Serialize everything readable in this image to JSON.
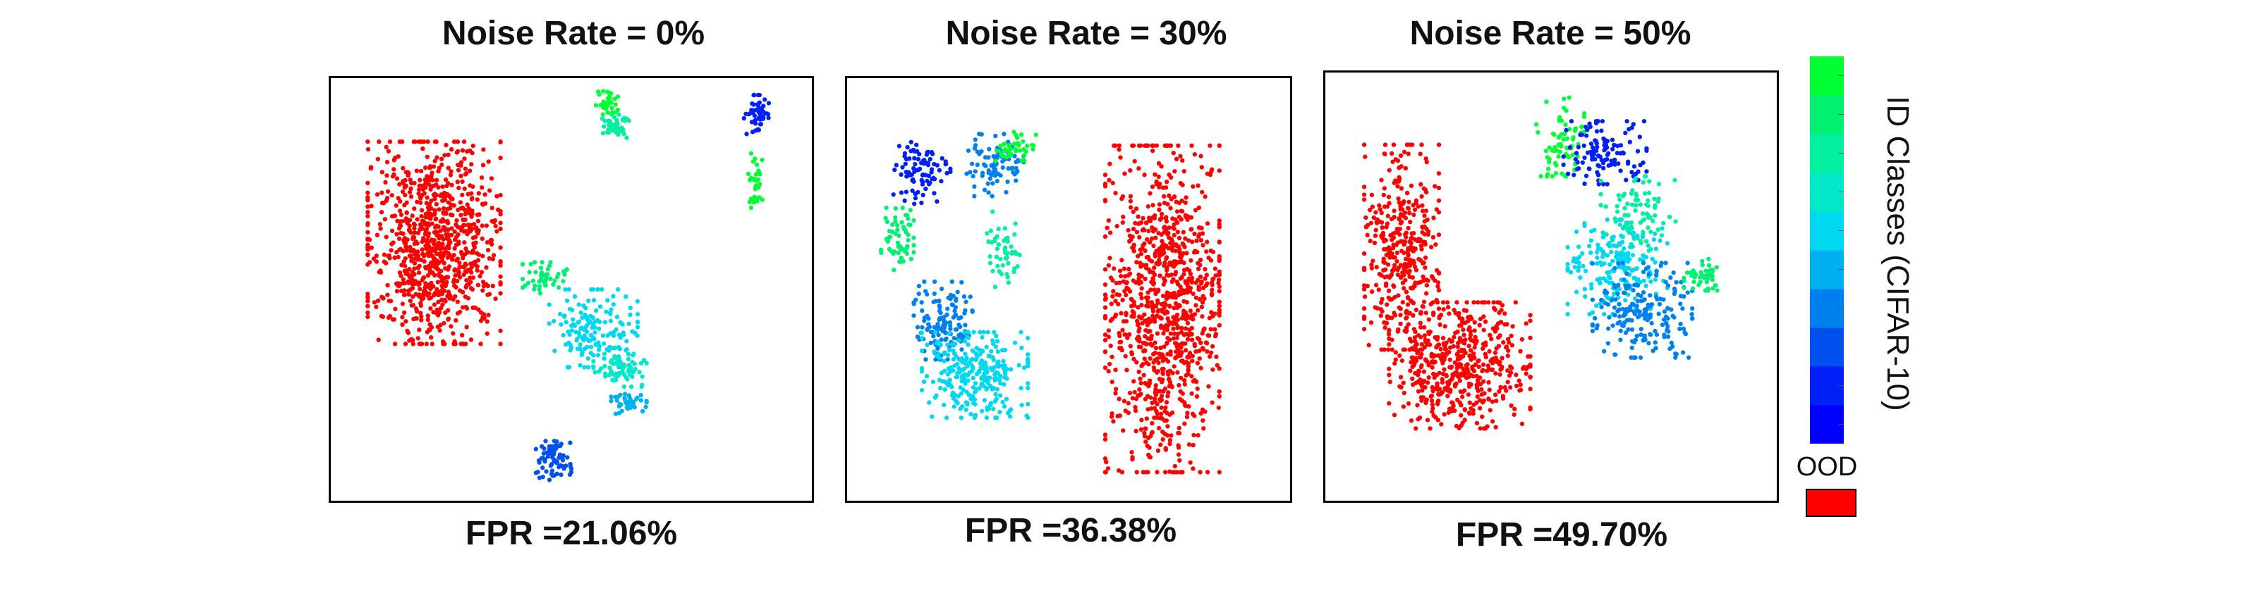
{
  "chart_data": [
    {
      "type": "scatter",
      "title": "Noise Rate = 0%",
      "metric": "FPR =21.06%",
      "clusters": [
        {
          "class": "OOD",
          "cx": 0.19,
          "cy": 0.38,
          "rx": 0.15,
          "ry": 0.26,
          "n": 900
        },
        {
          "class": 7,
          "cx": 0.6,
          "cy": 0.08,
          "rx": 0.03,
          "ry": 0.03,
          "n": 45
        },
        {
          "class": 9,
          "cx": 0.58,
          "cy": 0.02,
          "rx": 0.025,
          "ry": 0.03,
          "n": 35
        },
        {
          "class": 1,
          "cx": 0.92,
          "cy": 0.05,
          "rx": 0.03,
          "ry": 0.05,
          "n": 50
        },
        {
          "class": 9,
          "cx": 0.92,
          "cy": 0.22,
          "rx": 0.02,
          "ry": 0.07,
          "n": 35
        },
        {
          "class": 8,
          "cx": 0.44,
          "cy": 0.47,
          "rx": 0.05,
          "ry": 0.04,
          "n": 45
        },
        {
          "class": 5,
          "cx": 0.55,
          "cy": 0.6,
          "rx": 0.1,
          "ry": 0.1,
          "n": 160
        },
        {
          "class": 6,
          "cx": 0.61,
          "cy": 0.7,
          "rx": 0.06,
          "ry": 0.05,
          "n": 70
        },
        {
          "class": 4,
          "cx": 0.63,
          "cy": 0.79,
          "rx": 0.04,
          "ry": 0.03,
          "n": 40
        },
        {
          "class": 2,
          "cx": 0.46,
          "cy": 0.94,
          "rx": 0.04,
          "ry": 0.05,
          "n": 70
        }
      ]
    },
    {
      "type": "scatter",
      "title": "Noise Rate = 30%",
      "metric": "FPR =36.38%",
      "clusters": [
        {
          "class": "OOD",
          "cx": 0.73,
          "cy": 0.55,
          "rx": 0.14,
          "ry": 0.42,
          "n": 1000
        },
        {
          "class": 1,
          "cx": 0.14,
          "cy": 0.2,
          "rx": 0.07,
          "ry": 0.08,
          "n": 90
        },
        {
          "class": 8,
          "cx": 0.08,
          "cy": 0.37,
          "rx": 0.04,
          "ry": 0.08,
          "n": 60
        },
        {
          "class": 3,
          "cx": 0.32,
          "cy": 0.18,
          "rx": 0.07,
          "ry": 0.08,
          "n": 90
        },
        {
          "class": 9,
          "cx": 0.37,
          "cy": 0.13,
          "rx": 0.05,
          "ry": 0.04,
          "n": 40
        },
        {
          "class": 7,
          "cx": 0.34,
          "cy": 0.4,
          "rx": 0.04,
          "ry": 0.1,
          "n": 50
        },
        {
          "class": 3,
          "cx": 0.2,
          "cy": 0.58,
          "rx": 0.08,
          "ry": 0.1,
          "n": 140
        },
        {
          "class": 5,
          "cx": 0.27,
          "cy": 0.72,
          "rx": 0.13,
          "ry": 0.11,
          "n": 280
        }
      ]
    },
    {
      "type": "scatter",
      "title": "Noise Rate = 50%",
      "metric": "FPR =49.70%",
      "clusters": [
        {
          "class": "OOD",
          "cx": 0.14,
          "cy": 0.4,
          "rx": 0.09,
          "ry": 0.26,
          "n": 380
        },
        {
          "class": "OOD",
          "cx": 0.28,
          "cy": 0.7,
          "rx": 0.17,
          "ry": 0.16,
          "n": 520
        },
        {
          "class": 9,
          "cx": 0.52,
          "cy": 0.12,
          "rx": 0.06,
          "ry": 0.1,
          "n": 70
        },
        {
          "class": 1,
          "cx": 0.63,
          "cy": 0.16,
          "rx": 0.1,
          "ry": 0.08,
          "n": 120
        },
        {
          "class": 7,
          "cx": 0.71,
          "cy": 0.32,
          "rx": 0.09,
          "ry": 0.1,
          "n": 90
        },
        {
          "class": 5,
          "cx": 0.66,
          "cy": 0.45,
          "rx": 0.12,
          "ry": 0.12,
          "n": 200
        },
        {
          "class": 3,
          "cx": 0.72,
          "cy": 0.56,
          "rx": 0.12,
          "ry": 0.12,
          "n": 200
        },
        {
          "class": 8,
          "cx": 0.87,
          "cy": 0.47,
          "rx": 0.05,
          "ry": 0.04,
          "n": 45
        }
      ]
    }
  ],
  "colorbar": {
    "label": "ID Classes (CIFAR-10)",
    "classes": 10,
    "colors": [
      "#0000ff",
      "#0020f5",
      "#0050ef",
      "#0080ee",
      "#00b0ee",
      "#00d8f0",
      "#00e8c8",
      "#00f0a0",
      "#00f070",
      "#00ff33"
    ]
  },
  "ood": {
    "label": "OOD",
    "color": "#ff0000"
  }
}
